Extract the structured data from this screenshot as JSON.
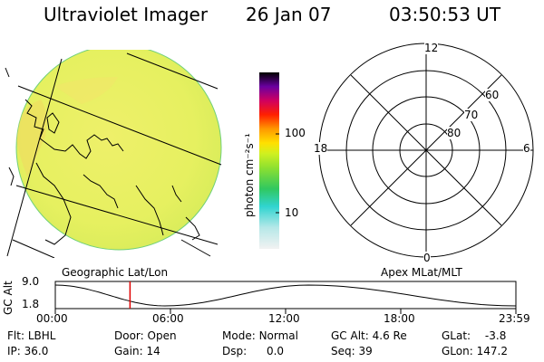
{
  "header": {
    "title": "Ultraviolet Imager",
    "date": "26 Jan 07",
    "time": "03:50:53 UT"
  },
  "colorbar": {
    "unit_label": "photon cm⁻²s⁻¹",
    "ticks": [
      "100",
      "10"
    ]
  },
  "polar": {
    "mlt_labels": {
      "top": "12",
      "left": "18",
      "right": "6",
      "bottom": "0"
    },
    "lat_labels": [
      "60",
      "70",
      "80"
    ]
  },
  "timeline": {
    "left_caption": "Geographic Lat/Lon",
    "right_caption": "Apex MLat/MLT",
    "y_axis_label": "GC Alt",
    "y_ticks": [
      "9.0",
      "1.8"
    ],
    "x_ticks": [
      "00:00",
      "06:00",
      "12:00",
      "18:00",
      "23:59"
    ],
    "current_time_fraction": 0.1622,
    "orbit_track": {
      "x_hours": [
        0,
        5.7,
        13.2,
        24
      ],
      "alt_re": [
        9.0,
        1.8,
        9.0,
        1.8
      ]
    }
  },
  "status": {
    "flt_label": "Flt:",
    "flt_value": "LBHL",
    "ip_label": "IP:",
    "ip_value": "36.0",
    "door_label": "Door:",
    "door_value": "Open",
    "gain_label": "Gain:",
    "gain_value": "14",
    "mode_label": "Mode:",
    "mode_value": "Normal",
    "dsp_label": "Dsp:",
    "dsp_value": "0.0",
    "gcalt_label": "GC Alt:",
    "gcalt_value": "4.6 Re",
    "seq_label": "Seq:",
    "seq_value": "39",
    "glat_label": "GLat:",
    "glat_value": "-3.8",
    "glon_label": "GLon:",
    "glon_value": "147.2"
  },
  "colors": {
    "disk_base": "#e8f05a",
    "disk_edge": "#6fd07a",
    "marker": "#e00000"
  }
}
